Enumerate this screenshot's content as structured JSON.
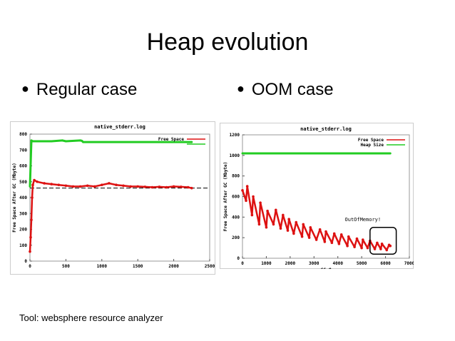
{
  "slide": {
    "title": "Heap evolution",
    "bullets": [
      "Regular case",
      "OOM case"
    ],
    "footer": "Tool: websphere resource analyzer"
  },
  "colors": {
    "heap": "#22cc22",
    "free": "#dd1111",
    "dashed": "#000000",
    "border": "#999999"
  },
  "chart_data": [
    {
      "type": "line",
      "title": "native_stderr.log",
      "xlabel": "",
      "ylabel": "Free Space After GC (Mbyte)",
      "xlim": [
        0,
        2500
      ],
      "ylim": [
        0,
        800
      ],
      "xticks": [
        0,
        500,
        1000,
        1500,
        2000,
        2500
      ],
      "yticks": [
        0,
        100,
        200,
        300,
        400,
        500,
        600,
        700,
        800
      ],
      "legend": [
        "Free Space",
        ""
      ],
      "series": [
        {
          "name": "Heap Size",
          "x": [
            0,
            20,
            40,
            300,
            450,
            500,
            700,
            720,
            740,
            2250
          ],
          "y": [
            470,
            760,
            755,
            755,
            760,
            755,
            760,
            758,
            750,
            750
          ]
        },
        {
          "name": "Free Space",
          "x": [
            0,
            10,
            20,
            30,
            40,
            60,
            100,
            200,
            300,
            400,
            500,
            600,
            700,
            800,
            900,
            1000,
            1100,
            1200,
            1300,
            1400,
            1500,
            1600,
            1700,
            1800,
            1900,
            2000,
            2100,
            2200,
            2250
          ],
          "y": [
            60,
            150,
            260,
            400,
            480,
            510,
            500,
            490,
            485,
            480,
            475,
            470,
            470,
            475,
            470,
            480,
            490,
            480,
            475,
            470,
            470,
            468,
            465,
            468,
            465,
            470,
            468,
            465,
            460
          ]
        }
      ],
      "reference_line": {
        "y": 460
      }
    },
    {
      "type": "line",
      "title": "native_stderr.log",
      "xlabel": "GC #",
      "ylabel": "Free Space After GC (Mbyte)",
      "xlim": [
        0,
        7000
      ],
      "ylim": [
        0,
        1200
      ],
      "xticks": [
        0,
        1000,
        2000,
        3000,
        4000,
        5000,
        6000,
        7000
      ],
      "yticks": [
        0,
        200,
        400,
        600,
        800,
        1000,
        1200
      ],
      "legend": [
        "Free Space",
        "Heap Size"
      ],
      "annotation": "OutOfMemory!",
      "series": [
        {
          "name": "Heap Size",
          "x": [
            0,
            6200
          ],
          "y": [
            1020,
            1020
          ]
        },
        {
          "name": "Free Space",
          "x": [
            0,
            150,
            200,
            400,
            450,
            700,
            750,
            1000,
            1050,
            1300,
            1400,
            1600,
            1700,
            1900,
            1950,
            2150,
            2250,
            2500,
            2550,
            2800,
            2850,
            3100,
            3250,
            3450,
            3500,
            3750,
            3850,
            4050,
            4150,
            4400,
            4450,
            4700,
            4800,
            5000,
            5050,
            5250,
            5350,
            5550,
            5650,
            5800,
            5850,
            6050,
            6150,
            6200
          ],
          "y": [
            660,
            560,
            700,
            420,
            600,
            330,
            540,
            300,
            460,
            330,
            470,
            290,
            420,
            270,
            380,
            240,
            350,
            210,
            330,
            200,
            300,
            180,
            280,
            160,
            260,
            150,
            240,
            140,
            230,
            120,
            210,
            110,
            190,
            100,
            180,
            100,
            170,
            90,
            150,
            90,
            140,
            80,
            130,
            120
          ]
        }
      ]
    }
  ]
}
